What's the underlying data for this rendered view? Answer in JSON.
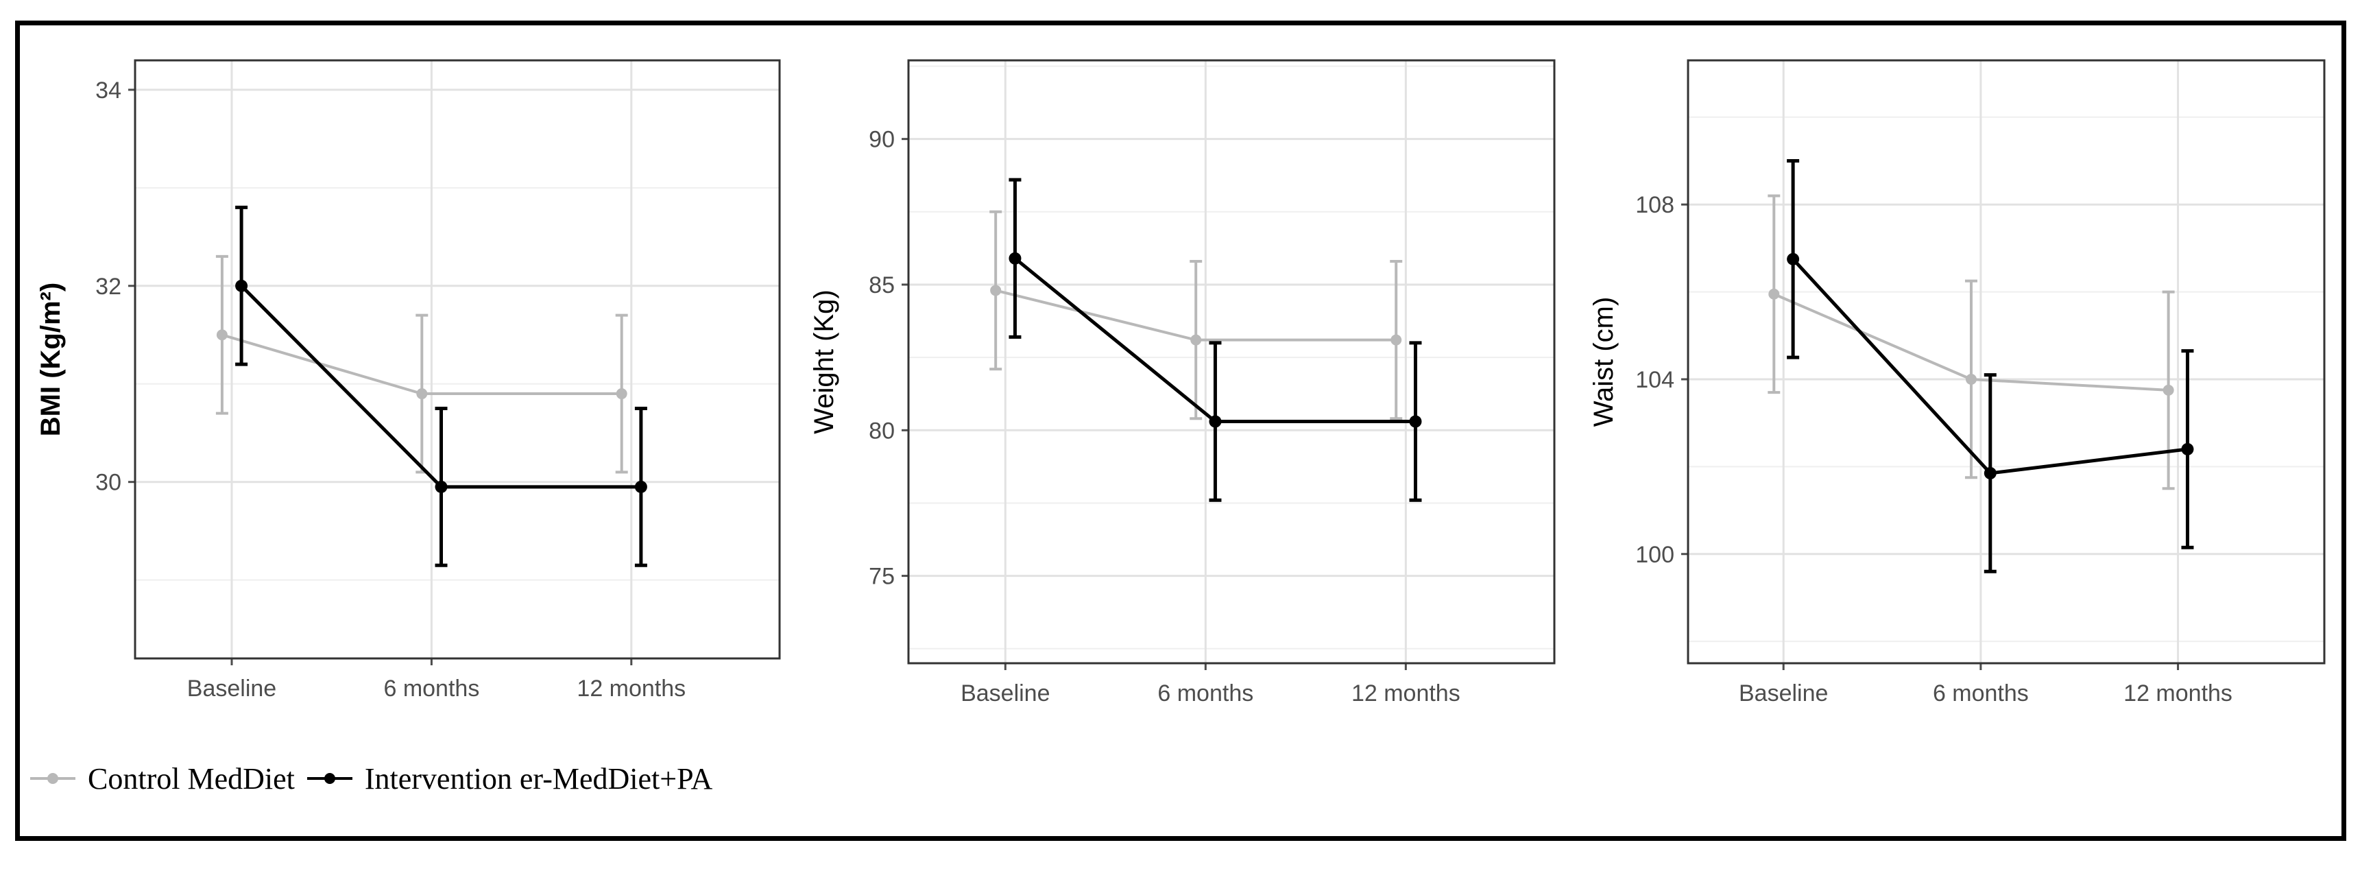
{
  "chart_data": [
    {
      "type": "line",
      "ylabel": "BMI (Kg/m²)",
      "categories": [
        "Baseline",
        "6 months",
        "12 months"
      ],
      "ylim": [
        28.2,
        34.3
      ],
      "yticks": [
        30,
        32,
        34
      ],
      "grid": true,
      "series": [
        {
          "name": "Control MedDiet",
          "values": [
            31.5,
            30.9,
            30.9
          ],
          "err_low": [
            30.7,
            30.1,
            30.1
          ],
          "err_high": [
            32.3,
            31.7,
            31.7
          ]
        },
        {
          "name": "Intervention er-MedDiet+PA",
          "values": [
            32.0,
            29.95,
            29.95
          ],
          "err_low": [
            31.2,
            29.15,
            29.15
          ],
          "err_high": [
            32.8,
            30.75,
            30.75
          ]
        }
      ]
    },
    {
      "type": "line",
      "ylabel": "Weight (Kg)",
      "categories": [
        "Baseline",
        "6 months",
        "12 months"
      ],
      "ylim": [
        72.0,
        92.7
      ],
      "yticks": [
        75,
        80,
        85,
        90
      ],
      "grid": true,
      "series": [
        {
          "name": "Control MedDiet",
          "values": [
            84.8,
            83.1,
            83.1
          ],
          "err_low": [
            82.1,
            80.4,
            80.4
          ],
          "err_high": [
            87.5,
            85.8,
            85.8
          ]
        },
        {
          "name": "Intervention er-MedDiet+PA",
          "values": [
            85.9,
            80.3,
            80.3
          ],
          "err_low": [
            83.2,
            77.6,
            77.6
          ],
          "err_high": [
            88.6,
            83.0,
            83.0
          ]
        }
      ]
    },
    {
      "type": "line",
      "ylabel": "Waist (cm)",
      "categories": [
        "Baseline",
        "6 months",
        "12 months"
      ],
      "ylim": [
        97.5,
        111.3
      ],
      "yticks": [
        100,
        104,
        108
      ],
      "grid": true,
      "series": [
        {
          "name": "Control MedDiet",
          "values": [
            105.95,
            104.0,
            103.75
          ],
          "err_low": [
            103.7,
            101.75,
            101.5
          ],
          "err_high": [
            108.2,
            106.25,
            106.0
          ]
        },
        {
          "name": "Intervention er-MedDiet+PA",
          "values": [
            106.75,
            101.85,
            102.4
          ],
          "err_low": [
            104.5,
            99.6,
            100.15
          ],
          "err_high": [
            109.0,
            104.1,
            104.65
          ]
        }
      ]
    }
  ],
  "legend": [
    {
      "label": "Control MedDiet",
      "color": "#b8b8b8"
    },
    {
      "label": "Intervention er-MedDiet+PA",
      "color": "#000000"
    }
  ]
}
